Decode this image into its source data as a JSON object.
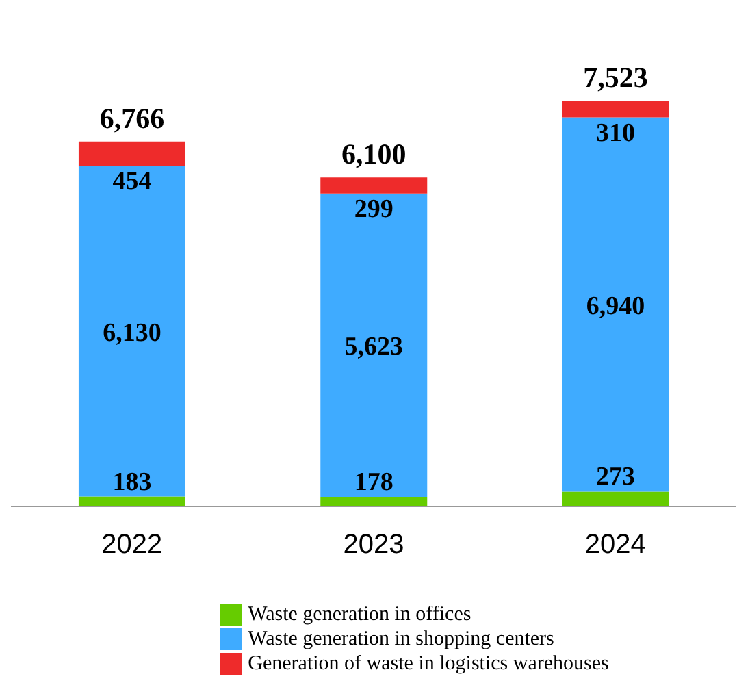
{
  "chart_data": {
    "type": "bar",
    "stacked": true,
    "categories": [
      "2022",
      "2023",
      "2024"
    ],
    "series": [
      {
        "name": "Waste generation in offices",
        "color": "#66cc00",
        "values": [
          183,
          178,
          273
        ]
      },
      {
        "name": "Waste generation in shopping centers",
        "color": "#3fabff",
        "values": [
          6130,
          5623,
          6940
        ],
        "value_labels": [
          "6,130",
          "5,623",
          "6,940"
        ]
      },
      {
        "name": "Generation of waste in logistics warehouses",
        "color": "#ee2b2b",
        "values": [
          454,
          299,
          310
        ]
      }
    ],
    "data_labels": true,
    "totals": [
      "6,766",
      "6,100",
      "7,523"
    ],
    "legend": "bottom",
    "grid": false
  }
}
